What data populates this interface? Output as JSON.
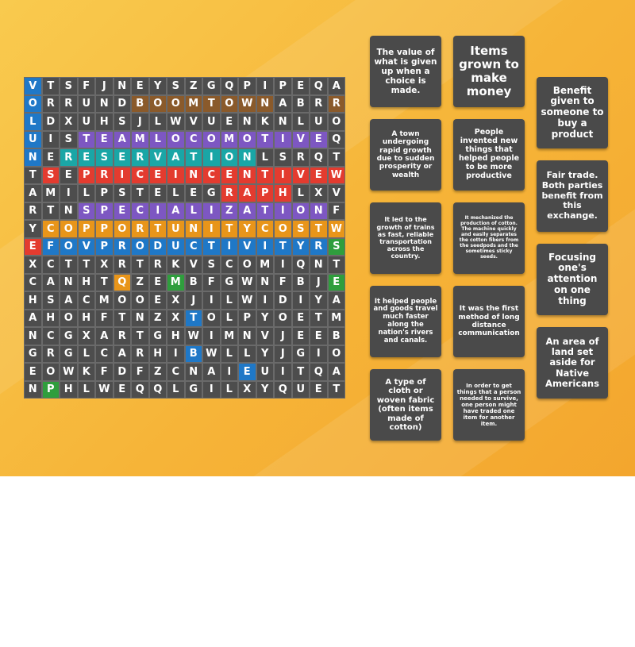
{
  "colors": {
    "cell_default": "#4d4d4d",
    "card_bg": "#4a4a4a",
    "highlight": {
      "B": "#1f78c7",
      "R": "#e33b2f",
      "O": "#e8951a",
      "G": "#2f9e3d",
      "P": "#7d57c2",
      "T": "#1aa6a6",
      "K": "#8a5a2b"
    }
  },
  "grid": {
    "rows": [
      "VTSFJNEYSZGQPIPEQA",
      "ORRUNDBOOMTOWNABRR",
      "LDXUHSJLWVUENKNLUO",
      "UISTEAMLOCOMOTIVEQ",
      "NERESERVATIONLSRQT",
      "TSEPRICEINCENTIVEW",
      "AMILPSTELEGRAPHLXV",
      "RTNSPECIALIZATIONF",
      "YCOPPORTUNITYCOSTW",
      "EFOVPRODUCTIVITYRS",
      "XCTTXRTRKVSCOMIQNT",
      "CANHTQZEMBFGWNFBJE",
      "HSACMOOEXJILWIDIYA",
      "AHOHFTNZXTOLPYOETM",
      "NCGXARTGHWIMNVJEEB",
      "GRGLCARHIBWLLYJGIO",
      "EOWKFDFZCNAIEUITQA",
      "NPHLWEQQLGILXYQUET"
    ],
    "highlights": [
      "B.................",
      "B.....KKKKKKKK...K",
      "B.................",
      "B..PPPPPPPPPPPPPP.",
      "B.TTTTTTTTTTT.....",
      ".R.RRRRRRRRRRRRRRR",
      "...........RRRR...",
      "...PPPPPPPPPPPPPP.",
      ".OOOOOOOOOOOOOOOOO",
      "RBBBBBBBBBBBBBBBBG",
      "..................",
      ".....O..G........G",
      "..................",
      ".........B........",
      "..................",
      ".........B........",
      "............B.....",
      ".G................"
    ]
  },
  "cards": [
    {
      "id": "opportunity-cost",
      "text": "The value of what is given up when a choice is made."
    },
    {
      "id": "cash-crops",
      "text": "Items grown to make money"
    },
    {
      "id": "incentive",
      "text": "Benefit given to someone to buy a product"
    },
    {
      "id": "boomtown",
      "text": "A town undergoing rapid growth due to sudden prosperity or wealth"
    },
    {
      "id": "inventors",
      "text": "People invented new things that helped people to be more productive"
    },
    {
      "id": "fair-trade",
      "text": "Fair trade. Both parties benefit from this exchange."
    },
    {
      "id": "steam-locomotive",
      "text": "It led to the growth of trains as fast, reliable transportation across the country."
    },
    {
      "id": "cotton-gin",
      "text": "It mechanized the production of cotton. The machine quickly and easily separates the cotton fibers from the seedpods and the sometimes sticky seeds."
    },
    {
      "id": "specialization",
      "text": "Focusing one's attention on one thing"
    },
    {
      "id": "steamboat",
      "text": "It helped people and goods travel much faster along the nation's rivers and canals."
    },
    {
      "id": "telegraph",
      "text": "It was the first method of long distance communication"
    },
    {
      "id": "reservation",
      "text": "An area of land set aside for Native Americans"
    },
    {
      "id": "textile",
      "text": "A type of cloth or woven fabric (often items made of cotton)"
    },
    {
      "id": "barter",
      "text": "In order to get things that a person needed to survive, one person might have traded one item for another item."
    }
  ]
}
